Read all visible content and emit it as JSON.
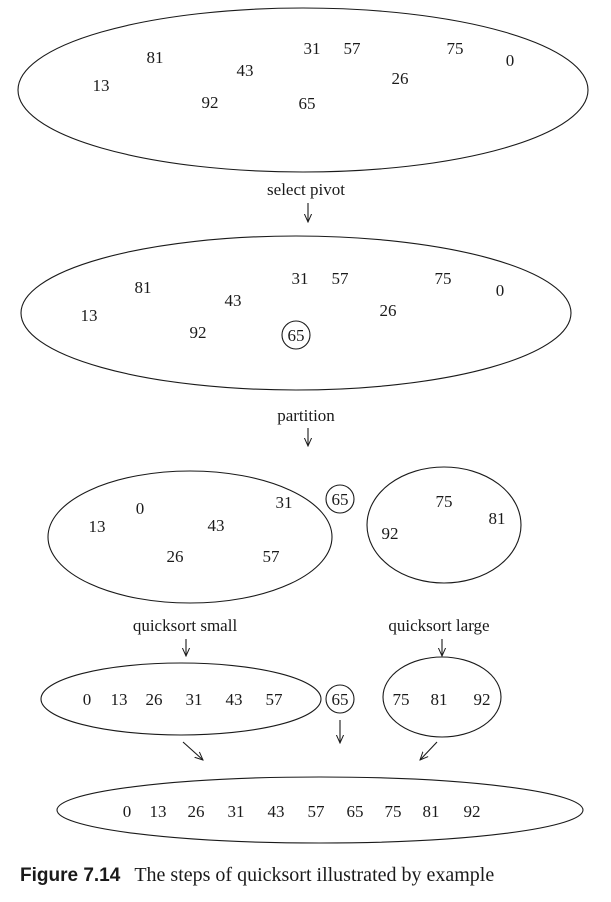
{
  "diagram": {
    "stage_initial": [
      "81",
      "31",
      "57",
      "75",
      "0",
      "43",
      "26",
      "13",
      "92",
      "65"
    ],
    "label_select_pivot": "select pivot",
    "stage_pivot_selected": [
      "81",
      "31",
      "57",
      "75",
      "0",
      "43",
      "26",
      "13",
      "92",
      "65"
    ],
    "label_partition": "partition",
    "stage_small_set": [
      "0",
      "31",
      "13",
      "43",
      "26",
      "57"
    ],
    "pivot_value": "65",
    "stage_large_set": [
      "75",
      "81",
      "92"
    ],
    "label_quicksort_small": "quicksort small",
    "label_quicksort_large": "quicksort large",
    "sorted_small": [
      "0",
      "13",
      "26",
      "31",
      "43",
      "57"
    ],
    "sorted_large": [
      "75",
      "81",
      "92"
    ],
    "final_sorted": [
      "0",
      "13",
      "26",
      "31",
      "43",
      "57",
      "65",
      "75",
      "81",
      "92"
    ]
  },
  "caption": {
    "figure_number": "Figure 7.14",
    "text": "The steps of quicksort illustrated by example"
  }
}
